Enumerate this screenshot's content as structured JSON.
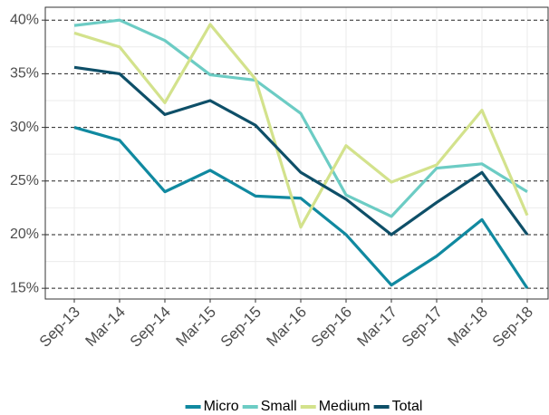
{
  "chart_data": {
    "type": "line",
    "categories": [
      "Sep-13",
      "Mar-14",
      "Sep-14",
      "Mar-15",
      "Sep-15",
      "Mar-16",
      "Sep-16",
      "Mar-17",
      "Sep-17",
      "Mar-18",
      "Sep-18"
    ],
    "series": [
      {
        "name": "Micro",
        "color": "#1089a0",
        "values": [
          30.0,
          28.8,
          24.0,
          26.0,
          23.6,
          23.4,
          20.0,
          15.3,
          18.0,
          21.4,
          15.0
        ]
      },
      {
        "name": "Small",
        "color": "#6cccc4",
        "values": [
          39.5,
          40.0,
          38.1,
          34.9,
          34.4,
          31.3,
          23.7,
          21.7,
          26.2,
          26.6,
          24.0
        ]
      },
      {
        "name": "Medium",
        "color": "#d3e28c",
        "values": [
          38.8,
          37.5,
          32.3,
          39.6,
          34.5,
          20.7,
          28.3,
          24.9,
          26.5,
          31.6,
          21.8
        ]
      },
      {
        "name": "Total",
        "color": "#0e4f68",
        "values": [
          35.6,
          35.0,
          31.2,
          32.5,
          30.2,
          25.8,
          23.3,
          20.0,
          23.0,
          25.8,
          20.0
        ]
      }
    ],
    "ylim": [
      14,
      41.2
    ],
    "yticks": [
      {
        "value": 15,
        "label": "15%"
      },
      {
        "value": 20,
        "label": "20%"
      },
      {
        "value": 25,
        "label": "25%"
      },
      {
        "value": 30,
        "label": "30%"
      },
      {
        "value": 35,
        "label": "35%"
      },
      {
        "value": 40,
        "label": "40%"
      }
    ],
    "grid": true,
    "legend": "bottom"
  }
}
